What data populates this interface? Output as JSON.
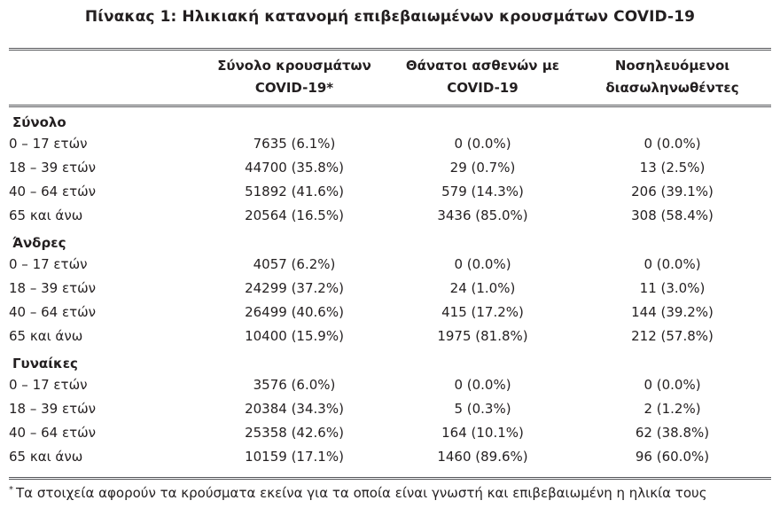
{
  "title": "Πίνακας 1: Ηλικιακή κατανομή επιβεβαιωμένων κρουσμάτων COVID-19",
  "table": {
    "column_headers": [
      {
        "line1": "Σύνολο κρουσμάτων",
        "line2": "COVID-19*"
      },
      {
        "line1": "Θάνατοι ασθενών με",
        "line2": "COVID-19"
      },
      {
        "line1": "Νοσηλευόμενοι",
        "line2": "διασωληνωθέντες"
      }
    ],
    "sections": [
      {
        "label": "Σύνολο",
        "rows": [
          {
            "label": "0 – 17 ετών",
            "cases": "7635 (6.1%)",
            "deaths": "0 (0.0%)",
            "intubated": "0 (0.0%)"
          },
          {
            "label": "18 – 39 ετών",
            "cases": "44700 (35.8%)",
            "deaths": "29 (0.7%)",
            "intubated": "13 (2.5%)"
          },
          {
            "label": "40 – 64 ετών",
            "cases": "51892 (41.6%)",
            "deaths": "579 (14.3%)",
            "intubated": "206 (39.1%)"
          },
          {
            "label": "65 και άνω",
            "cases": "20564 (16.5%)",
            "deaths": "3436 (85.0%)",
            "intubated": "308 (58.4%)"
          }
        ]
      },
      {
        "label": "Άνδρες",
        "rows": [
          {
            "label": "0 – 17 ετών",
            "cases": "4057 (6.2%)",
            "deaths": "0 (0.0%)",
            "intubated": "0 (0.0%)"
          },
          {
            "label": "18 – 39 ετών",
            "cases": "24299 (37.2%)",
            "deaths": "24 (1.0%)",
            "intubated": "11 (3.0%)"
          },
          {
            "label": "40 – 64 ετών",
            "cases": "26499 (40.6%)",
            "deaths": "415 (17.2%)",
            "intubated": "144 (39.2%)"
          },
          {
            "label": "65 και άνω",
            "cases": "10400 (15.9%)",
            "deaths": "1975 (81.8%)",
            "intubated": "212 (57.8%)"
          }
        ]
      },
      {
        "label": "Γυναίκες",
        "rows": [
          {
            "label": "0 – 17 ετών",
            "cases": "3576 (6.0%)",
            "deaths": "0 (0.0%)",
            "intubated": "0 (0.0%)"
          },
          {
            "label": "18 – 39 ετών",
            "cases": "20384 (34.3%)",
            "deaths": "5 (0.3%)",
            "intubated": "2 (1.2%)"
          },
          {
            "label": "40 – 64 ετών",
            "cases": "25358 (42.6%)",
            "deaths": "164 (10.1%)",
            "intubated": "62 (38.8%)"
          },
          {
            "label": "65 και άνω",
            "cases": "10159 (17.1%)",
            "deaths": "1460 (89.6%)",
            "intubated": "96 (60.0%)"
          }
        ]
      }
    ]
  },
  "footnote": {
    "marker": "*",
    "text": "Τα στοιχεία αφορούν τα κρούσματα εκείνα για τα οποία είναι γνωστή και επιβεβαιωμένη η ηλικία τους"
  },
  "colors": {
    "text": "#231f20",
    "rule": "#55565a"
  }
}
